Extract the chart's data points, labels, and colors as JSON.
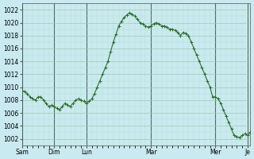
{
  "ylabel": "",
  "xlabel": "",
  "bg_color": "#c8eaf0",
  "plot_bg_color": "#c8eaf0",
  "line_color": "#2d6e2d",
  "marker": "+",
  "marker_size": 3,
  "ylim": [
    1001,
    1023
  ],
  "yticks": [
    1002,
    1004,
    1006,
    1008,
    1010,
    1012,
    1014,
    1016,
    1018,
    1020,
    1022
  ],
  "grid_color": "#a0c8b0",
  "grid_minor_color": "#b8dcc8",
  "tick_labels": [
    "Sam",
    "Dim",
    "Lun",
    "Mar",
    "Mer",
    "Je"
  ],
  "tick_positions": [
    0,
    24,
    48,
    96,
    144,
    168
  ],
  "data_x": [
    0,
    2,
    4,
    6,
    8,
    10,
    12,
    14,
    16,
    18,
    20,
    22,
    24,
    26,
    28,
    30,
    32,
    34,
    36,
    38,
    40,
    42,
    44,
    46,
    48,
    50,
    52,
    54,
    56,
    58,
    60,
    62,
    64,
    66,
    68,
    70,
    72,
    74,
    76,
    78,
    80,
    82,
    84,
    86,
    88,
    90,
    92,
    94,
    96,
    98,
    100,
    102,
    104,
    106,
    108,
    110,
    112,
    114,
    116,
    118,
    120,
    122,
    124,
    126,
    128,
    130,
    132,
    134,
    136,
    138,
    140,
    142,
    144,
    146,
    148,
    150,
    152,
    154,
    156,
    158,
    160,
    162,
    164,
    166,
    168,
    170
  ],
  "data_y": [
    1009.5,
    1009.3,
    1009.0,
    1008.5,
    1008.2,
    1008.0,
    1008.5,
    1008.5,
    1008.0,
    1007.5,
    1007.0,
    1007.2,
    1007.0,
    1006.7,
    1006.5,
    1007.0,
    1007.5,
    1007.2,
    1007.0,
    1007.5,
    1008.0,
    1008.2,
    1008.0,
    1007.8,
    1007.5,
    1007.8,
    1008.2,
    1009.0,
    1010.0,
    1011.0,
    1012.0,
    1013.0,
    1014.0,
    1015.5,
    1017.0,
    1018.2,
    1019.5,
    1020.2,
    1020.8,
    1021.2,
    1021.5,
    1021.3,
    1021.0,
    1020.5,
    1020.0,
    1019.8,
    1019.5,
    1019.3,
    1019.5,
    1019.8,
    1020.0,
    1019.8,
    1019.5,
    1019.5,
    1019.3,
    1019.0,
    1019.0,
    1018.8,
    1018.5,
    1018.0,
    1018.5,
    1018.3,
    1018.0,
    1017.0,
    1016.0,
    1015.0,
    1014.0,
    1013.0,
    1012.0,
    1011.0,
    1010.0,
    1008.5,
    1008.5,
    1008.2,
    1007.5,
    1006.5,
    1005.5,
    1004.5,
    1003.5,
    1002.5,
    1002.3,
    1002.2,
    1002.5,
    1002.8,
    1002.5,
    1003.0
  ]
}
